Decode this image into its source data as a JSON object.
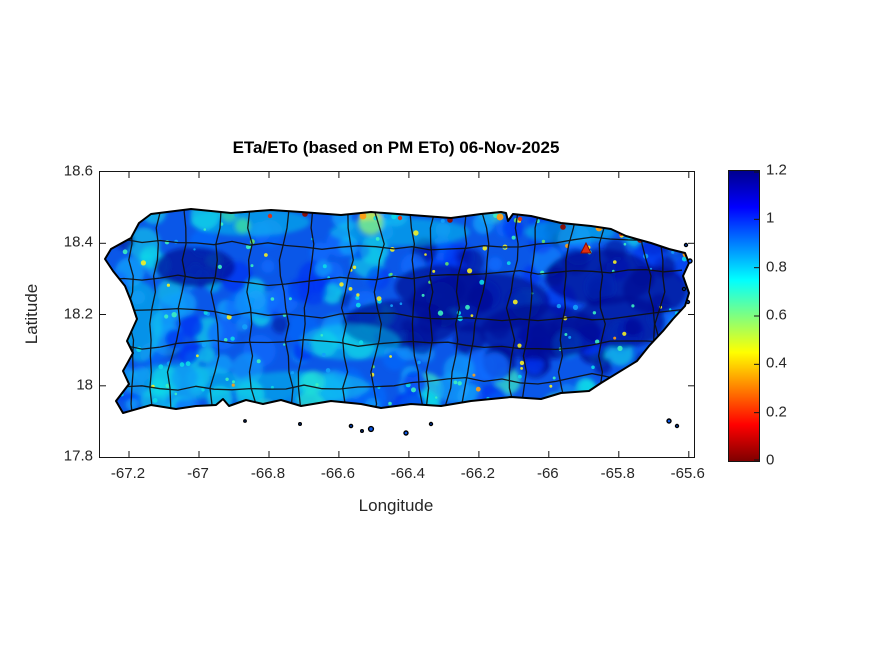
{
  "figure": {
    "title": "ETa/ETo (based on PM ETo) 06-Nov-2025",
    "xlabel": "Longitude",
    "ylabel": "Latitude"
  },
  "axes": {
    "x": {
      "label": "Longitude",
      "tick_labels": [
        "-67.2",
        "-67",
        "-66.8",
        "-66.6",
        "-66.4",
        "-66.2",
        "-66",
        "-65.8",
        "-65.6"
      ],
      "tick_values": [
        -67.2,
        -67,
        -66.8,
        -66.6,
        -66.4,
        -66.2,
        -66,
        -65.8,
        -65.6
      ]
    },
    "y": {
      "label": "Latitude",
      "tick_labels": [
        "17.8",
        "18",
        "18.2",
        "18.4",
        "18.6"
      ],
      "tick_values": [
        17.8,
        18,
        18.2,
        18.4,
        18.6
      ]
    }
  },
  "colorbar": {
    "tick_labels": [
      "0",
      "0.2",
      "0.4",
      "0.6",
      "0.8",
      "1",
      "1.2"
    ],
    "tick_values": [
      0,
      0.2,
      0.4,
      0.6,
      0.8,
      1,
      1.2
    ],
    "range": [
      0,
      1.2
    ],
    "colormap": "jet (reversed: low=red, high=dark blue)",
    "stops": [
      {
        "value": 0.0,
        "color": "#7f0000"
      },
      {
        "value": 0.15,
        "color": "#ff0000"
      },
      {
        "value": 0.45,
        "color": "#ffff00"
      },
      {
        "value": 0.75,
        "color": "#00ffff"
      },
      {
        "value": 1.05,
        "color": "#0000ff"
      },
      {
        "value": 1.2,
        "color": "#00008f"
      }
    ]
  },
  "map_colors": {
    "base": "#0a57e8",
    "navy": "#000d96",
    "blue": "#0333f2",
    "medium": "#0a6cff",
    "sky": "#13a0fb",
    "cyan": "#0cd9e8",
    "aqua": "#3cf0c0",
    "green": "#63e06a",
    "yellow": "#f5f024",
    "orange": "#ff9d13",
    "red": "#e03010",
    "darkred": "#8e0b00",
    "boundary": "#101010",
    "coast": "#000000",
    "axis_text": "#262626"
  },
  "chart_data": {
    "type": "heatmap",
    "title": "ETa/ETo (based on PM ETo) 06-Nov-2025",
    "xlabel": "Longitude",
    "ylabel": "Latitude",
    "region": "Puerto Rico with municipality boundaries",
    "xlim": [
      -67.283,
      -65.585
    ],
    "ylim": [
      17.8,
      18.6
    ],
    "x_ticks": [
      -67.2,
      -67,
      -66.8,
      -66.6,
      -66.4,
      -66.2,
      -66,
      -65.8,
      -65.6
    ],
    "y_ticks": [
      17.8,
      18,
      18.2,
      18.4,
      18.6
    ],
    "grid": false,
    "legend": "colorbar right, 0 to 1.2 in steps of 0.2, reversed jet colormap",
    "value_field": "ETa/ETo ratio",
    "value_range_depicted": [
      0,
      1.2
    ],
    "spatial_pattern": [
      {
        "area": "central-eastern cordillera and El Yunque (lon -66.5 to -65.8, lat 18.05-18.3)",
        "value": "1.0-1.2 (dark navy blue)"
      },
      {
        "area": "most interior and north of island",
        "value": "0.85-1.05 (blue)"
      },
      {
        "area": "west and southwest coastal plains",
        "value": "0.65-0.85 (sky blue / cyan)"
      },
      {
        "area": "scattered small pixels island-wide",
        "value": "0.4-0.6 (aqua/green/yellow specks)"
      },
      {
        "area": "sparse hotspots mainly along north coast urban fringe",
        "value": "0-0.3 (orange/red/dark-red)"
      }
    ],
    "marker": {
      "shape": "triangle",
      "color": "#e03010",
      "lon": -65.894,
      "lat": 18.384,
      "note": "small red triangle plotted near the northeast coast"
    }
  }
}
